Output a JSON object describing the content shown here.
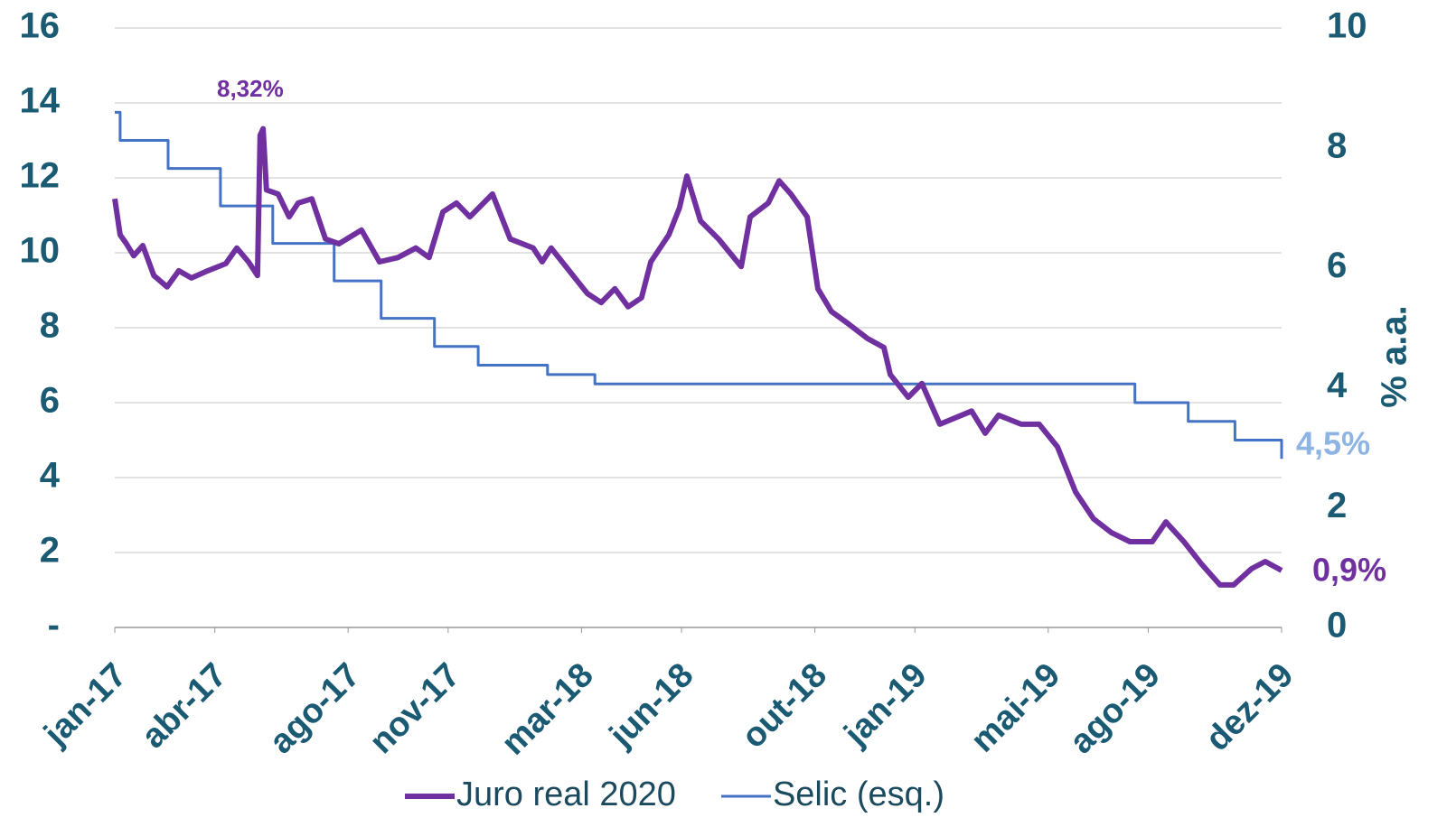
{
  "chart_data": {
    "type": "line",
    "y2label": "% a.a.",
    "xlim": [
      0,
      35
    ],
    "xticks": [
      {
        "value": 0,
        "label": "jan-17"
      },
      {
        "value": 3,
        "label": "abr-17"
      },
      {
        "value": 7,
        "label": "ago-17"
      },
      {
        "value": 10,
        "label": "nov-17"
      },
      {
        "value": 14,
        "label": "mar-18"
      },
      {
        "value": 17,
        "label": "jun-18"
      },
      {
        "value": 21,
        "label": "out-18"
      },
      {
        "value": 24,
        "label": "jan-19"
      },
      {
        "value": 28,
        "label": "mai-19"
      },
      {
        "value": 31,
        "label": "ago-19"
      },
      {
        "value": 35,
        "label": "dez-19"
      }
    ],
    "ylim": [
      0,
      16
    ],
    "yticks": [
      {
        "value": 0,
        "label": "-"
      },
      2,
      4,
      6,
      8,
      10,
      12,
      14,
      16
    ],
    "y2lim": [
      0,
      10
    ],
    "y2ticks": [
      0,
      2,
      4,
      6,
      8,
      10
    ],
    "grid": true,
    "legend": "bottom",
    "annotations": [
      "8,32%",
      "0,9%",
      "4,5%"
    ],
    "series": [
      {
        "name": "Juro real 2020",
        "color": "#7030a0",
        "axis": "y2",
        "x": [
          0,
          0.16,
          0.35,
          0.57,
          0.84,
          1.17,
          1.57,
          1.92,
          2.3,
          2.79,
          3.33,
          3.66,
          4.01,
          4.28,
          4.36,
          4.45,
          4.55,
          4.9,
          5.23,
          5.5,
          5.91,
          6.32,
          6.72,
          7.4,
          7.94,
          8.49,
          9.03,
          9.43,
          9.84,
          10.25,
          10.65,
          11.33,
          11.86,
          12.55,
          12.82,
          13.09,
          13.63,
          14.18,
          14.59,
          15,
          15.4,
          15.8,
          16.08,
          16.62,
          16.94,
          17.16,
          17.57,
          18.11,
          18.79,
          19.06,
          19.6,
          19.93,
          20.28,
          20.77,
          21.09,
          21.5,
          22.04,
          22.58,
          23.07,
          23.26,
          23.8,
          24.21,
          24.75,
          25.7,
          26.11,
          26.51,
          27.19,
          27.73,
          28.28,
          28.82,
          29.36,
          29.9,
          30.45,
          31.12,
          31.53,
          32.07,
          32.61,
          33.15,
          33.56,
          34.1,
          34.51,
          35
        ],
        "values": [
          7.15,
          6.55,
          6.4,
          6.2,
          6.37,
          5.87,
          5.68,
          5.95,
          5.83,
          5.95,
          6.07,
          6.33,
          6.1,
          5.87,
          8.21,
          8.32,
          7.3,
          7.23,
          6.85,
          7.08,
          7.15,
          6.48,
          6.4,
          6.63,
          6.1,
          6.17,
          6.33,
          6.17,
          6.93,
          7.08,
          6.85,
          7.23,
          6.48,
          6.33,
          6.1,
          6.33,
          5.95,
          5.57,
          5.42,
          5.65,
          5.35,
          5.5,
          6.1,
          6.55,
          7,
          7.53,
          6.78,
          6.48,
          6.02,
          6.85,
          7.08,
          7.45,
          7.23,
          6.85,
          5.65,
          5.27,
          5.05,
          4.82,
          4.67,
          4.22,
          3.84,
          4.07,
          3.39,
          3.61,
          3.24,
          3.54,
          3.39,
          3.39,
          3.01,
          2.26,
          1.81,
          1.58,
          1.43,
          1.43,
          1.76,
          1.43,
          1.05,
          0.71,
          0.71,
          0.98,
          1.1,
          0.95
        ]
      },
      {
        "name": "Selic (esq.)",
        "color": "#4472c4",
        "axis": "y",
        "x": [
          0,
          0.16,
          0.16,
          1.6,
          1.6,
          3.17,
          3.17,
          4.74,
          4.74,
          6.58,
          6.58,
          7.99,
          7.99,
          9.59,
          9.59,
          10.9,
          10.9,
          12.98,
          12.98,
          14.4,
          14.4,
          30.6,
          30.6,
          32.2,
          32.2,
          33.6,
          33.6,
          35,
          35
        ],
        "values": [
          13.75,
          13.75,
          13,
          13,
          12.25,
          12.25,
          11.25,
          11.25,
          10.25,
          10.25,
          9.25,
          9.25,
          8.25,
          8.25,
          7.5,
          7.5,
          7,
          7,
          6.75,
          6.75,
          6.5,
          6.5,
          6,
          6,
          5.5,
          5.5,
          5,
          5,
          4.5
        ]
      }
    ]
  }
}
